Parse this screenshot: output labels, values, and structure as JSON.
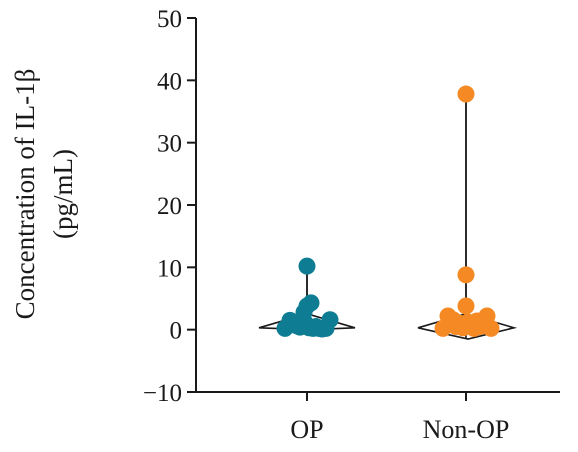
{
  "chart_data": {
    "type": "scatter",
    "ylabel_line1": "Concentration of IL-1β",
    "ylabel_line2": "(pg/mL)",
    "ylim": [
      -10,
      50
    ],
    "yticks": [
      -10,
      0,
      10,
      20,
      30,
      40,
      50
    ],
    "ytick_labels": [
      "−10",
      "0",
      "10",
      "20",
      "30",
      "40",
      "50"
    ],
    "categories": [
      "OP",
      "Non-OP"
    ],
    "grid": false,
    "legend": "none",
    "series": [
      {
        "color": "#0e7d93",
        "range": [
          0,
          10.5
        ],
        "points": [
          {
            "dx": -0.22,
            "y": 0.2
          },
          {
            "dx": -0.17,
            "y": 1.5
          },
          {
            "dx": -0.13,
            "y": 1.0
          },
          {
            "dx": -0.1,
            "y": 0.6
          },
          {
            "dx": -0.07,
            "y": 0.4
          },
          {
            "dx": -0.05,
            "y": 0.8
          },
          {
            "dx": -0.02,
            "y": 1.1
          },
          {
            "dx": 0.0,
            "y": 10.2
          },
          {
            "dx": -0.03,
            "y": 2.8
          },
          {
            "dx": 0.0,
            "y": 3.8
          },
          {
            "dx": 0.04,
            "y": 4.3
          },
          {
            "dx": 0.02,
            "y": 0.3
          },
          {
            "dx": 0.06,
            "y": 0.2
          },
          {
            "dx": 0.09,
            "y": 0.5
          },
          {
            "dx": 0.12,
            "y": 0.2
          },
          {
            "dx": 0.15,
            "y": 0.1
          },
          {
            "dx": 0.19,
            "y": 0.2
          },
          {
            "dx": 0.23,
            "y": 1.6
          }
        ]
      },
      {
        "color": "#f58a25",
        "range": [
          -1.5,
          39.0
        ],
        "points": [
          {
            "dx": -0.23,
            "y": 0.2
          },
          {
            "dx": -0.18,
            "y": 2.2
          },
          {
            "dx": -0.13,
            "y": 1.6
          },
          {
            "dx": -0.1,
            "y": 0.5
          },
          {
            "dx": -0.06,
            "y": 1.0
          },
          {
            "dx": -0.03,
            "y": 0.3
          },
          {
            "dx": 0.0,
            "y": 37.8
          },
          {
            "dx": 0.0,
            "y": 8.8
          },
          {
            "dx": 0.0,
            "y": 3.8
          },
          {
            "dx": 0.02,
            "y": 1.2
          },
          {
            "dx": 0.05,
            "y": 0.6
          },
          {
            "dx": 0.08,
            "y": 0.2
          },
          {
            "dx": 0.11,
            "y": 1.4
          },
          {
            "dx": 0.14,
            "y": 0.5
          },
          {
            "dx": 0.18,
            "y": 0.9
          },
          {
            "dx": 0.21,
            "y": 2.2
          },
          {
            "dx": 0.25,
            "y": 0.2
          }
        ]
      }
    ]
  }
}
